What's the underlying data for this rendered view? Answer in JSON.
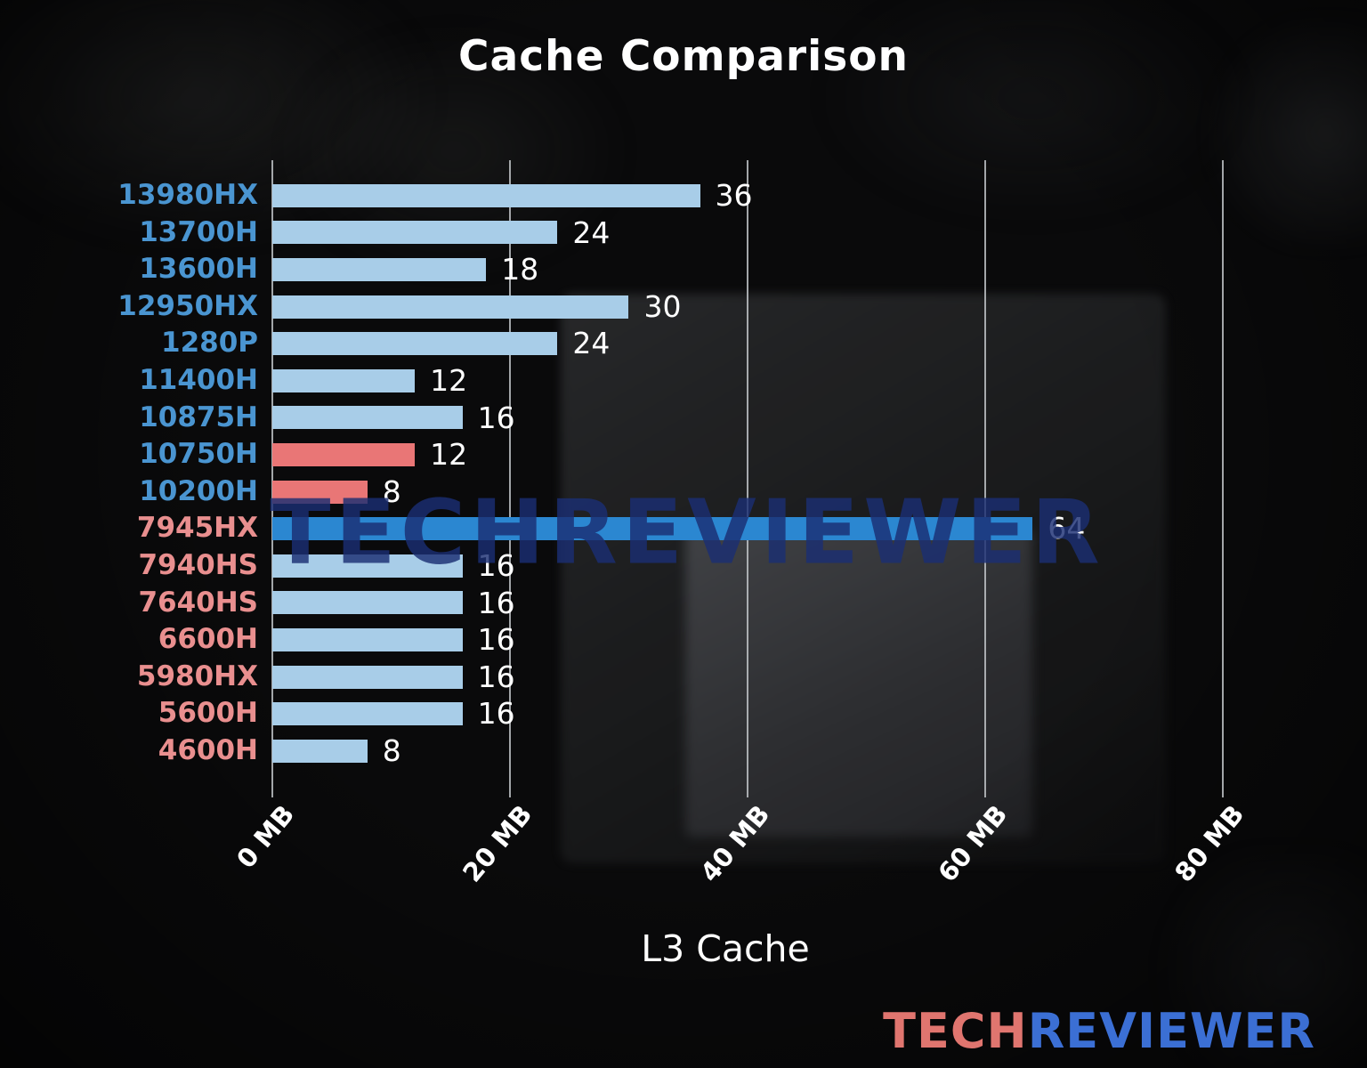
{
  "page": {
    "title": "Cache Comparison",
    "xlabel": "L3 Cache",
    "watermark": "TECHREVIEWER",
    "logo": {
      "part1": "TECH",
      "part2": "REVIEWER"
    }
  },
  "colors": {
    "bar_light_blue": "#a8cde8",
    "bar_salmon": "#e97676",
    "bar_highlight_blue": "#2b87d1",
    "label_blue": "#4a95d1",
    "label_salmon": "#e98f8f",
    "value_text": "#ffffff",
    "gridline": "#bec2c6",
    "title_text": "#ffffff",
    "watermark_blue": "#1b2e73",
    "logo_salmon": "#e0756f",
    "logo_blue": "#3b6fd4"
  },
  "chart_data": {
    "type": "bar",
    "orientation": "horizontal",
    "title": "Cache Comparison",
    "xlabel": "L3 Cache",
    "ylabel": "",
    "unit": "MB",
    "xlim": [
      0,
      85.4
    ],
    "grid": true,
    "xticks": [
      {
        "value": 0,
        "label": "0 MB"
      },
      {
        "value": 20,
        "label": "20 MB"
      },
      {
        "value": 40,
        "label": "40 MB"
      },
      {
        "value": 60,
        "label": "60 MB"
      },
      {
        "value": 80,
        "label": "80 MB"
      }
    ],
    "categories": [
      "13980HX",
      "13700H",
      "13600H",
      "12950HX",
      "1280P",
      "11400H",
      "10875H",
      "10750H",
      "10200H",
      "7945HX",
      "7940HS",
      "7640HS",
      "6600H",
      "5980HX",
      "5600H",
      "4600H"
    ],
    "values": [
      36,
      24,
      18,
      30,
      24,
      12,
      16,
      12,
      8,
      64,
      16,
      16,
      16,
      16,
      16,
      8
    ],
    "items": [
      {
        "label": "13980HX",
        "value": 36,
        "bar_color": "bar_light_blue",
        "label_color": "label_blue"
      },
      {
        "label": "13700H",
        "value": 24,
        "bar_color": "bar_light_blue",
        "label_color": "label_blue"
      },
      {
        "label": "13600H",
        "value": 18,
        "bar_color": "bar_light_blue",
        "label_color": "label_blue"
      },
      {
        "label": "12950HX",
        "value": 30,
        "bar_color": "bar_light_blue",
        "label_color": "label_blue"
      },
      {
        "label": "1280P",
        "value": 24,
        "bar_color": "bar_light_blue",
        "label_color": "label_blue"
      },
      {
        "label": "11400H",
        "value": 12,
        "bar_color": "bar_light_blue",
        "label_color": "label_blue"
      },
      {
        "label": "10875H",
        "value": 16,
        "bar_color": "bar_light_blue",
        "label_color": "label_blue"
      },
      {
        "label": "10750H",
        "value": 12,
        "bar_color": "bar_salmon",
        "label_color": "label_blue"
      },
      {
        "label": "10200H",
        "value": 8,
        "bar_color": "bar_salmon",
        "label_color": "label_blue"
      },
      {
        "label": "7945HX",
        "value": 64,
        "bar_color": "bar_highlight_blue",
        "label_color": "label_salmon"
      },
      {
        "label": "7940HS",
        "value": 16,
        "bar_color": "bar_light_blue",
        "label_color": "label_salmon"
      },
      {
        "label": "7640HS",
        "value": 16,
        "bar_color": "bar_light_blue",
        "label_color": "label_salmon"
      },
      {
        "label": "6600H",
        "value": 16,
        "bar_color": "bar_light_blue",
        "label_color": "label_salmon"
      },
      {
        "label": "5980HX",
        "value": 16,
        "bar_color": "bar_light_blue",
        "label_color": "label_salmon"
      },
      {
        "label": "5600H",
        "value": 16,
        "bar_color": "bar_light_blue",
        "label_color": "label_salmon"
      },
      {
        "label": "4600H",
        "value": 8,
        "bar_color": "bar_light_blue",
        "label_color": "label_salmon"
      }
    ],
    "legend": null
  }
}
